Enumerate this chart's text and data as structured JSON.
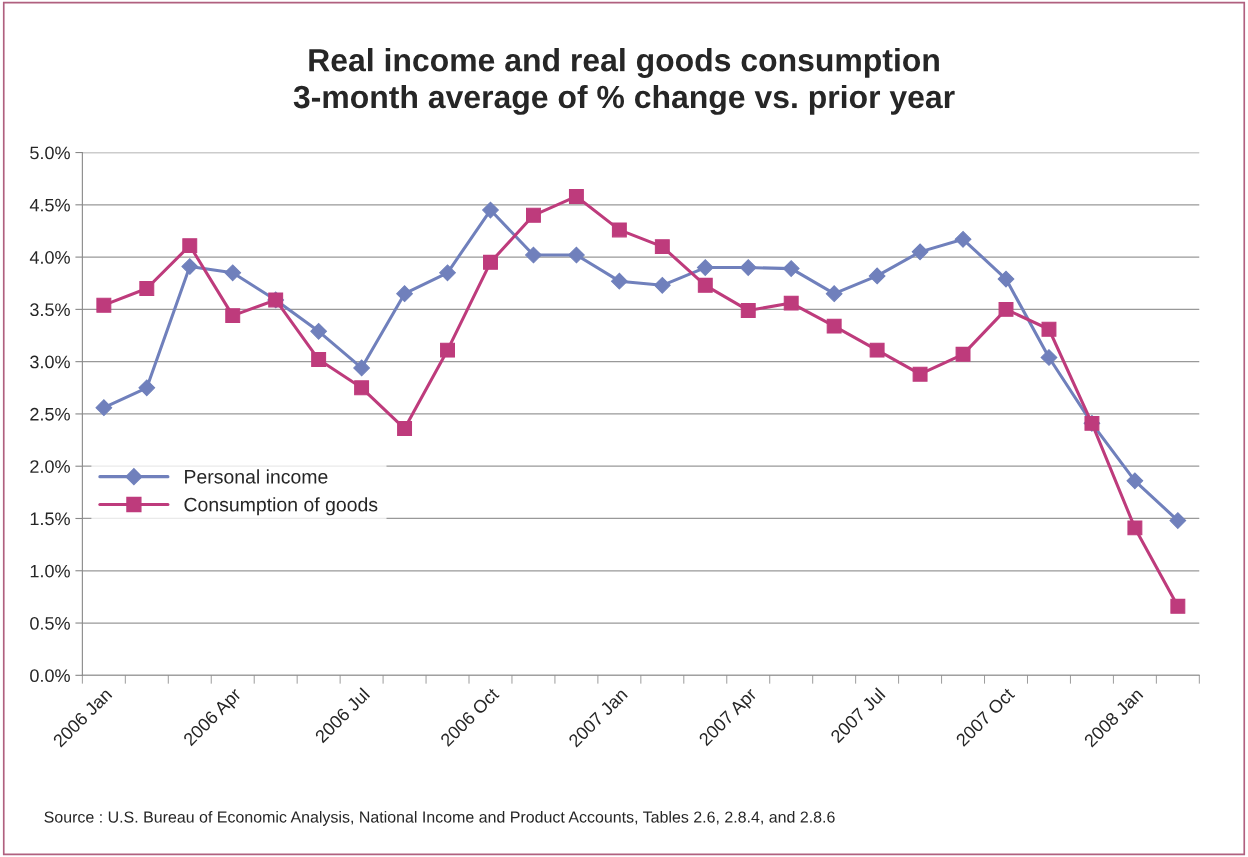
{
  "chart_data": {
    "type": "line",
    "title": "Real income and real goods consumption\n3-month average of % change vs. prior year",
    "categories": [
      "2006 Jan",
      null,
      null,
      "2006 Apr",
      null,
      null,
      "2006 Jul",
      null,
      null,
      "2006 Oct",
      null,
      null,
      "2007 Jan",
      null,
      null,
      "2007 Apr",
      null,
      null,
      "2007 Jul",
      null,
      null,
      "2007 Oct",
      null,
      null,
      "2008 Jan",
      null
    ],
    "series": [
      {
        "name": "Personal income",
        "color": "#7080bc",
        "marker": "diamond",
        "values": [
          2.56,
          2.75,
          3.91,
          3.85,
          3.59,
          3.29,
          2.94,
          3.65,
          3.85,
          4.45,
          4.02,
          4.02,
          3.77,
          3.73,
          3.9,
          3.9,
          3.89,
          3.65,
          3.82,
          4.05,
          4.17,
          3.79,
          3.04,
          2.41,
          1.86,
          1.48
        ]
      },
      {
        "name": "Consumption of goods",
        "color": "#be3b7c",
        "marker": "square",
        "values": [
          3.54,
          3.7,
          4.11,
          3.44,
          3.59,
          3.02,
          2.75,
          2.36,
          3.11,
          3.95,
          4.4,
          4.58,
          4.26,
          4.1,
          3.73,
          3.49,
          3.56,
          3.34,
          3.11,
          2.88,
          3.07,
          3.5,
          3.31,
          2.41,
          1.41,
          0.66
        ]
      }
    ],
    "ylim": [
      0,
      5
    ],
    "yticks": [
      {
        "value": 0,
        "label": "0.0%"
      },
      {
        "value": 0.5,
        "label": "0.5%"
      },
      {
        "value": 1,
        "label": "1.0%"
      },
      {
        "value": 1.5,
        "label": "1.5%"
      },
      {
        "value": 2,
        "label": "2.0%"
      },
      {
        "value": 2.5,
        "label": "2.5%"
      },
      {
        "value": 3,
        "label": "3.0%"
      },
      {
        "value": 3.5,
        "label": "3.5%"
      },
      {
        "value": 4,
        "label": "4.0%"
      },
      {
        "value": 4.5,
        "label": "4.5%"
      },
      {
        "value": 5,
        "label": "5.0%"
      }
    ],
    "grid": "y",
    "legend": "center left",
    "line_style": "solid",
    "annotations": [
      "Source : U.S. Bureau of Economic Analysis, National Income and Product Accounts, Tables 2.6, 2.8.4, and 2.8.6"
    ]
  }
}
